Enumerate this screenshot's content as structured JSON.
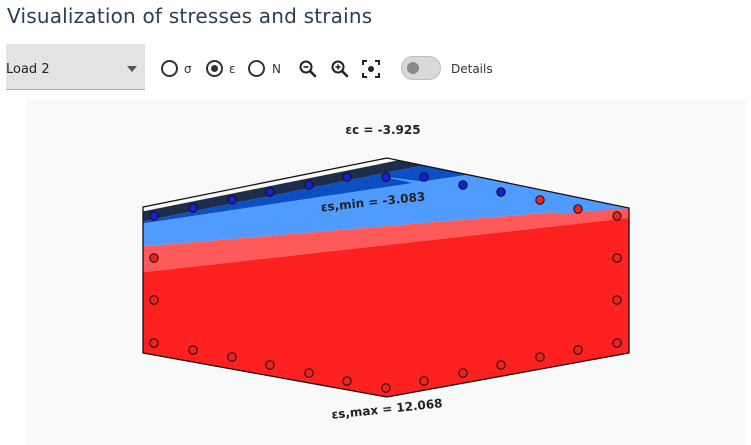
{
  "header": {
    "title": "Visualization of stresses and strains"
  },
  "toolbar": {
    "load_select": {
      "value": "Load 2"
    },
    "radios": [
      {
        "label": "σ",
        "checked": false
      },
      {
        "label": "ε",
        "checked": true
      },
      {
        "label": "N",
        "checked": false
      }
    ],
    "tools": [
      "zoom-out-icon",
      "zoom-in-icon",
      "fit-view-icon"
    ],
    "details_toggle": {
      "label": "Details",
      "on": false
    }
  },
  "diagram": {
    "labels": {
      "eps_c": "εc = -3.925",
      "eps_s_min": "εs,min = -3.083",
      "eps_s_max": "εs,max = 12.068"
    },
    "colors": {
      "dark_compression": "#1f2d4a",
      "deep_blue": "#0c4fc4",
      "light_blue": "#4f9bff",
      "light_red": "#ff5a5a",
      "red": "#ff2020",
      "bar_blue": "#1320d8",
      "bar_red": "#e82424"
    }
  }
}
